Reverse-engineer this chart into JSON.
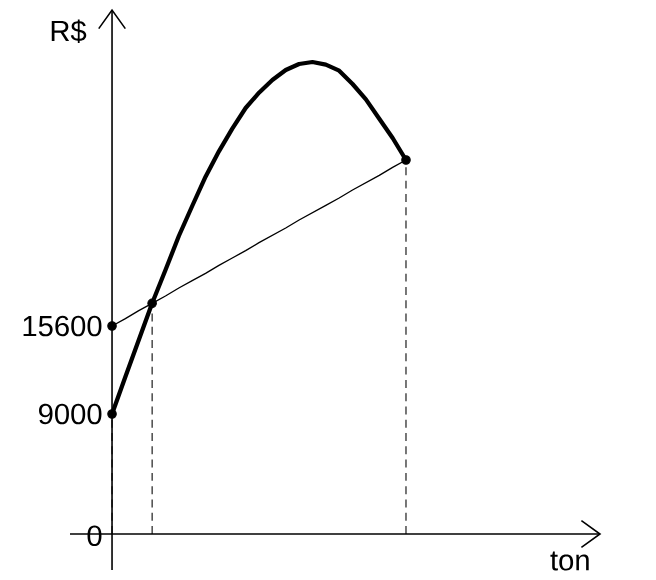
{
  "chart_data": {
    "type": "line",
    "xlabel": "ton",
    "ylabel": "R$",
    "categories": [
      null,
      null,
      null,
      null,
      null,
      null,
      null,
      null,
      null,
      null,
      null,
      null,
      null,
      null,
      null,
      null,
      null,
      null,
      null,
      null,
      null,
      null,
      null
    ],
    "ylim": [
      -2700,
      39300
    ],
    "yticks": [
      0,
      9000,
      15600
    ],
    "tick_labels": "y",
    "series": [
      {
        "type": "line",
        "color": "#000000",
        "marker": "none",
        "values": [
          9000,
          11800,
          14550,
          17300,
          19800,
          22350,
          24600,
          26800,
          28700,
          30400,
          31950,
          33100,
          34050,
          34800,
          35250,
          35400,
          35200,
          34750,
          33750,
          32600,
          31150,
          29700,
          28050
        ]
      },
      {
        "type": "line",
        "color": "#000000",
        "marker": "none",
        "values": [
          15600,
          16150,
          16750,
          17300,
          17850,
          18450,
          19000,
          19550,
          20150,
          20700,
          21250,
          21850,
          22400,
          22950,
          23550,
          24100,
          24650,
          25200,
          25800,
          26350,
          26900,
          27500,
          28050
        ]
      },
      {
        "type": "lollipop",
        "color": "#000000",
        "marker": "circle",
        "line_style": "dashed",
        "values": [
          9000,
          null,
          null,
          17300,
          null,
          null,
          null,
          null,
          null,
          null,
          null,
          null,
          null,
          null,
          null,
          null,
          null,
          null,
          null,
          null,
          null,
          null,
          28050
        ]
      },
      {
        "type": "scatter",
        "color": "#000000",
        "marker": "circle",
        "values": [
          15600,
          null,
          null,
          null,
          null,
          null,
          null,
          null,
          null,
          null,
          null,
          null,
          null,
          null,
          null,
          null,
          null,
          null,
          null,
          null,
          null,
          null,
          null
        ]
      }
    ]
  }
}
